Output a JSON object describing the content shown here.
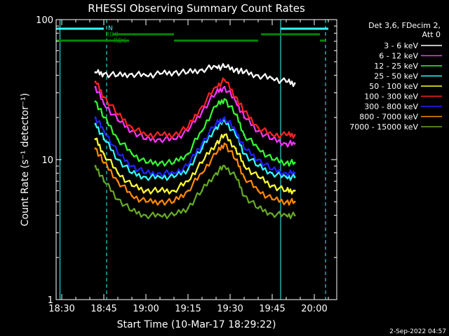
{
  "chart_data": {
    "type": "line",
    "title": "RHESSI Observing Summary Count Rates",
    "xlabel": "Start Time (10-Mar-17 18:29:22)",
    "ylabel": "Count Rate (s⁻¹ detector⁻¹)",
    "yscale": "log",
    "ylim": [
      1,
      100
    ],
    "xlim": [
      "18:28",
      "20:08"
    ],
    "x_ticks": [
      "18:30",
      "18:45",
      "19:00",
      "19:15",
      "19:30",
      "19:45",
      "20:00"
    ],
    "y_ticks": [
      "1",
      "10",
      "100"
    ],
    "grid": false,
    "legend_position": "right",
    "legend_header": [
      "Det 3,6, FDecim 2,",
      "Att 0"
    ],
    "footer": "2-Sep-2022 04:57",
    "x": [
      "18:42",
      "18:45",
      "18:50",
      "18:55",
      "19:00",
      "19:05",
      "19:10",
      "19:15",
      "19:20",
      "19:25",
      "19:28",
      "19:32",
      "19:35",
      "19:40",
      "19:45",
      "19:50",
      "19:53"
    ],
    "series": [
      {
        "name": "3 - 6 keV",
        "color": "#ffffff",
        "values": [
          42,
          41,
          40,
          41,
          40,
          41,
          42,
          42,
          44,
          46,
          46,
          44,
          42,
          40,
          38,
          36,
          35
        ]
      },
      {
        "name": "6 - 12 keV",
        "color": "#ff33ff",
        "values": [
          33,
          25,
          19,
          16,
          14,
          14,
          14,
          16,
          22,
          30,
          33,
          26,
          20,
          16,
          14,
          13,
          13
        ]
      },
      {
        "name": "12 - 25 keV",
        "color": "#33ff33",
        "values": [
          26,
          20,
          14,
          11,
          9.5,
          9.5,
          9.5,
          11,
          16,
          24,
          27,
          21,
          15,
          12,
          10,
          9.5,
          9.5
        ]
      },
      {
        "name": "25 - 50 keV",
        "color": "#33ffff",
        "values": [
          18,
          14,
          10,
          8,
          7.5,
          7.5,
          7.5,
          8.5,
          12,
          17,
          19,
          15,
          11,
          9,
          8,
          7.5,
          7.5
        ]
      },
      {
        "name": "50 - 100 keV",
        "color": "#ffff33",
        "values": [
          14,
          11,
          8,
          6.5,
          6,
          6,
          6,
          7,
          9.5,
          13,
          15,
          12,
          9,
          7.5,
          6.5,
          6,
          6
        ]
      },
      {
        "name": "100 - 300 keV",
        "color": "#ff2222",
        "values": [
          36,
          28,
          21,
          17,
          15,
          15,
          15,
          17,
          24,
          33,
          37,
          28,
          22,
          17,
          15,
          15,
          15
        ]
      },
      {
        "name": "300 - 800 keV",
        "color": "#2222ff",
        "values": [
          20,
          16,
          11,
          9,
          8,
          8,
          8,
          9,
          13,
          18,
          20,
          16,
          12,
          10,
          8.5,
          8,
          8
        ]
      },
      {
        "name": "800 - 7000 keV",
        "color": "#ff8800",
        "values": [
          12,
          9.5,
          7,
          5.5,
          5,
          5,
          5,
          6,
          8,
          11,
          13,
          10,
          7.5,
          6,
          5.2,
          5,
          5
        ]
      },
      {
        "name": "7000 - 15000 keV",
        "color": "#66aa22",
        "values": [
          9,
          7,
          5.2,
          4.3,
          4,
          4,
          4,
          4.5,
          6,
          8,
          9,
          7.5,
          5.5,
          4.5,
          4.1,
          4,
          4
        ]
      }
    ],
    "flags": {
      "N": {
        "label": "N",
        "color": "#33ffff",
        "segments": [
          [
            "18:28",
            "18:45"
          ],
          [
            "19:48",
            "20:05"
          ]
        ]
      },
      "RD0": {
        "label": "RD0",
        "color": "#008800",
        "segments": [
          [
            "18:48",
            "19:10"
          ],
          [
            "19:41",
            "20:02"
          ]
        ]
      },
      "RD6": {
        "label": "RD6",
        "color": "#008800",
        "segments": [
          [
            "18:28",
            "18:54"
          ],
          [
            "19:10",
            "19:40"
          ],
          [
            "20:02",
            "20:04"
          ]
        ]
      }
    },
    "reference_lines": [
      {
        "x": "18:29:22",
        "color": "#33ffff",
        "style": "solid"
      },
      {
        "x": "18:46",
        "color": "#33ffff",
        "style": "dashed"
      },
      {
        "x": "19:48",
        "color": "#33ffff",
        "style": "solid"
      },
      {
        "x": "20:04",
        "color": "#33ffff",
        "style": "dashed"
      }
    ]
  }
}
